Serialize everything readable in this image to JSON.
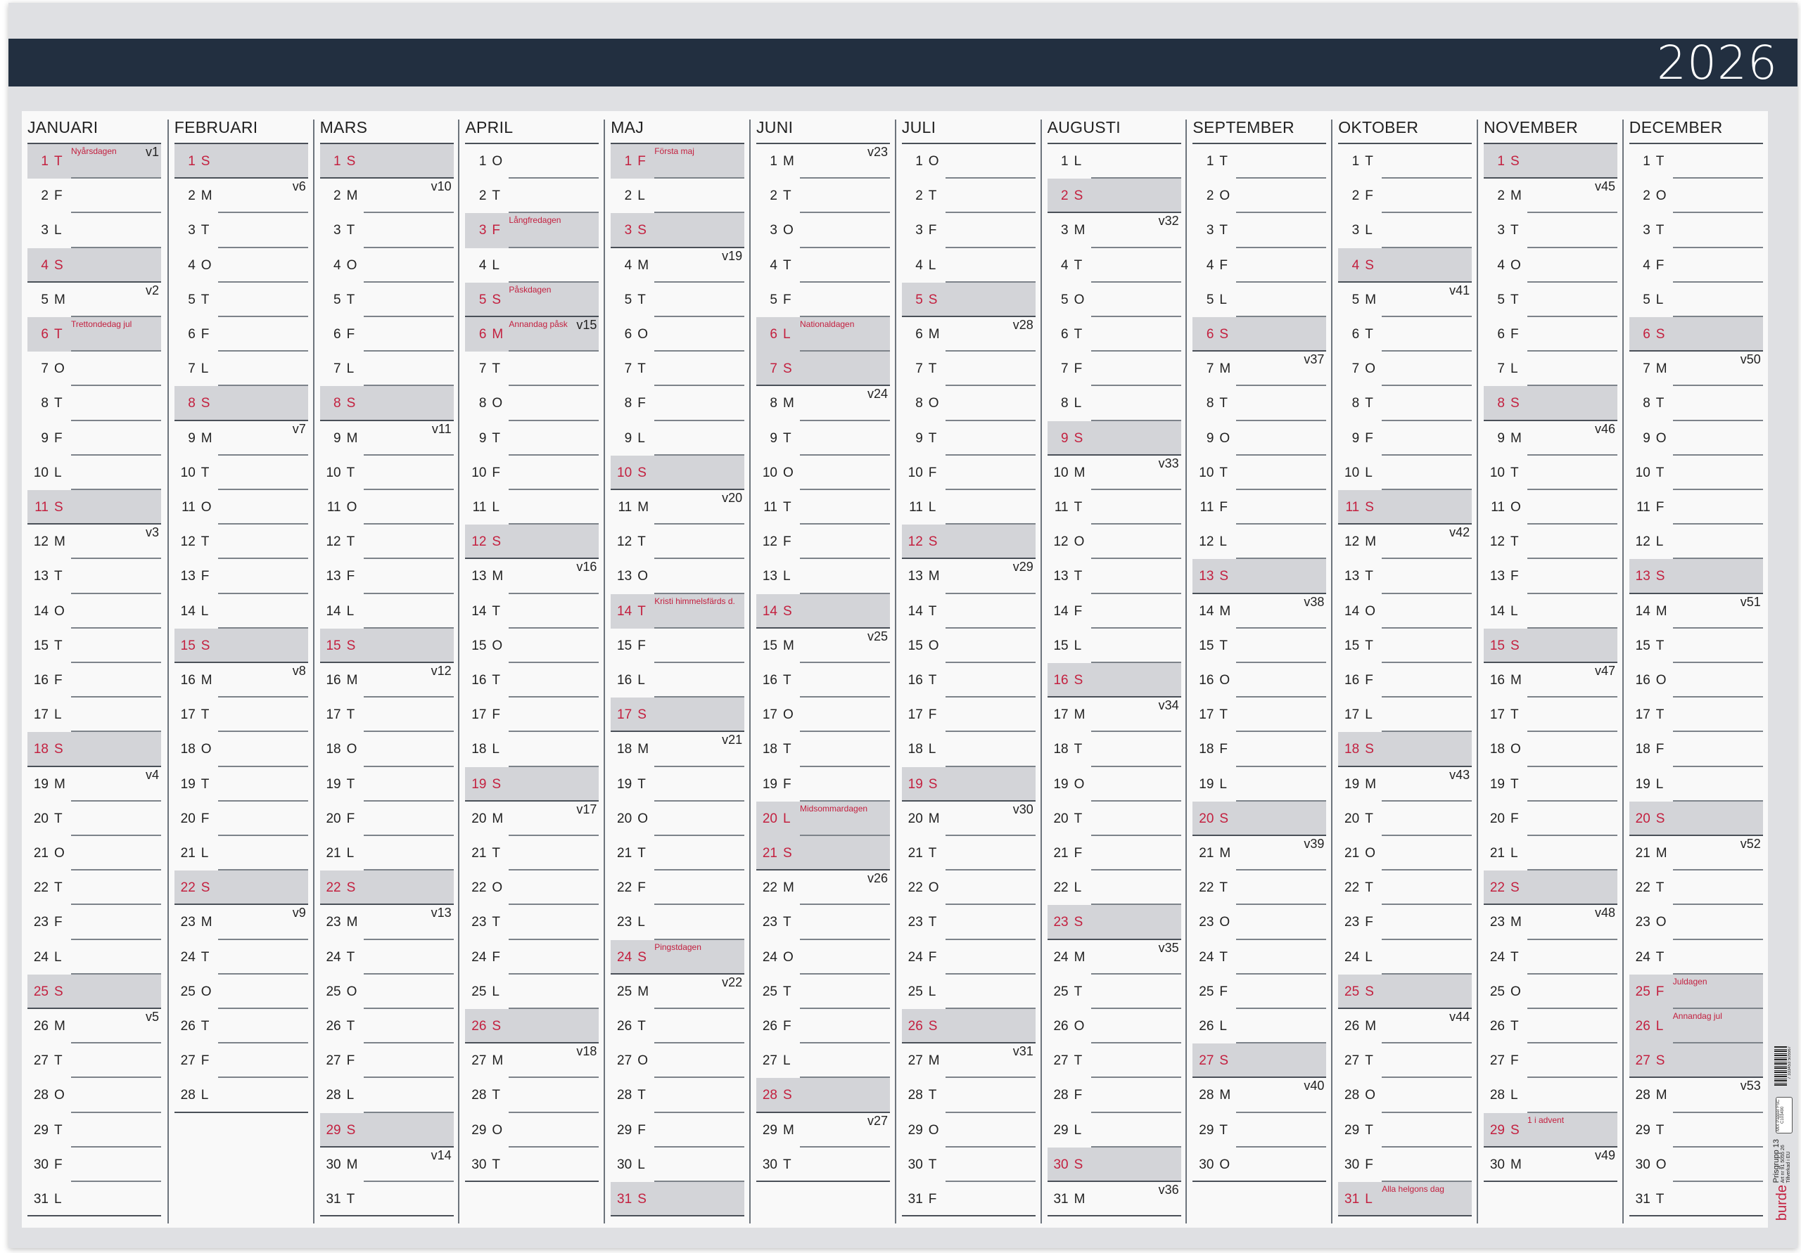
{
  "year": "2026",
  "colors": {
    "header_band": "#222f40",
    "red_day_text": "#c3203f",
    "red_day_shade": "#d3d4d8",
    "page": "#dfe0e3"
  },
  "months": [
    {
      "name": "JANUARI",
      "weekdays": "TFLSMTOTFLSMTOTFLSMTOTFLSMTOTFL",
      "weeks": {
        "1": "v1",
        "5": "v2",
        "12": "v3",
        "19": "v4",
        "26": "v5"
      },
      "holidays": {
        "1": "Nyårsdagen",
        "6": "Trettondedag jul"
      }
    },
    {
      "name": "FEBRUARI",
      "weekdays": "SMTOTFLSMTOTFLSMTOTFLSMTOTFL",
      "weeks": {
        "2": "v6",
        "9": "v7",
        "16": "v8",
        "23": "v9"
      },
      "holidays": {}
    },
    {
      "name": "MARS",
      "weekdays": "SMTOTFLSMTOTFLSMTOTFLSMTOTFLSMT",
      "weeks": {
        "2": "v10",
        "9": "v11",
        "16": "v12",
        "23": "v13",
        "30": "v14"
      },
      "holidays": {}
    },
    {
      "name": "APRIL",
      "weekdays": "OTFLSMTOTFLSMTOTFLSMTOTFLSMTOT",
      "weeks": {
        "6": "v15",
        "13": "v16",
        "20": "v17",
        "27": "v18"
      },
      "holidays": {
        "3": "Långfredagen",
        "5": "Påskdagen",
        "6": "Annandag påsk"
      }
    },
    {
      "name": "MAJ",
      "weekdays": "FLSMTOTFLSMTOTFLSMTOTFLSMTOTFLS",
      "weeks": {
        "4": "v19",
        "11": "v20",
        "18": "v21",
        "25": "v22"
      },
      "holidays": {
        "1": "Första maj",
        "14": "Kristi himmelsfärds d.",
        "24": "Pingstdagen"
      }
    },
    {
      "name": "JUNI",
      "weekdays": "MTOTFLSMTOTFLSMTOTFLSMTOTFLSMT",
      "weeks": {
        "1": "v23",
        "8": "v24",
        "15": "v25",
        "22": "v26",
        "29": "v27"
      },
      "holidays": {
        "6": "Nationaldagen",
        "20": "Midsommardagen"
      }
    },
    {
      "name": "JULI",
      "weekdays": "OTFLSMTOTFLSMTOTFLSMTOTFLSMTOTF",
      "weeks": {
        "6": "v28",
        "13": "v29",
        "20": "v30",
        "27": "v31"
      },
      "holidays": {}
    },
    {
      "name": "AUGUSTI",
      "weekdays": "LSMTOTFLSMTOTFLSMTOTFLSMTOTFLSM",
      "weeks": {
        "3": "v32",
        "10": "v33",
        "17": "v34",
        "24": "v35",
        "31": "v36"
      },
      "holidays": {}
    },
    {
      "name": "SEPTEMBER",
      "weekdays": "TOTFLSMTOTFLSMTOTFLSMTOTFLSMTO",
      "weeks": {
        "7": "v37",
        "14": "v38",
        "21": "v39",
        "28": "v40"
      },
      "holidays": {}
    },
    {
      "name": "OKTOBER",
      "weekdays": "TFLSMTOTFLSMTOTFLSMTOTFLSMTOTFL",
      "weeks": {
        "5": "v41",
        "12": "v42",
        "19": "v43",
        "26": "v44"
      },
      "holidays": {
        "31": "Alla helgons dag"
      }
    },
    {
      "name": "NOVEMBER",
      "weekdays": "SMTOTFLSMTOTFLSMTOTFLSMTOTFLSM",
      "weeks": {
        "2": "v45",
        "9": "v46",
        "16": "v47",
        "23": "v48",
        "30": "v49"
      },
      "holidays": {
        "29": "1 i advent"
      }
    },
    {
      "name": "DECEMBER",
      "weekdays": "TOTFLSMTOTFLSMTOTFLSMTOTFLSMTOT",
      "weeks": {
        "7": "v50",
        "14": "v51",
        "21": "v52",
        "28": "v53"
      },
      "holidays": {
        "25": "Juldagen",
        "26": "Annandag jul"
      }
    }
  ],
  "fine_print": {
    "barcode_number": "7 333453 505567",
    "fsc_label": "MIX Papper FSC C103490",
    "price_group": "Prisgrupp 13",
    "article_number": "Art nr 91 5055 26",
    "made_in": "Tillverkad i EU",
    "brand": "burde"
  }
}
